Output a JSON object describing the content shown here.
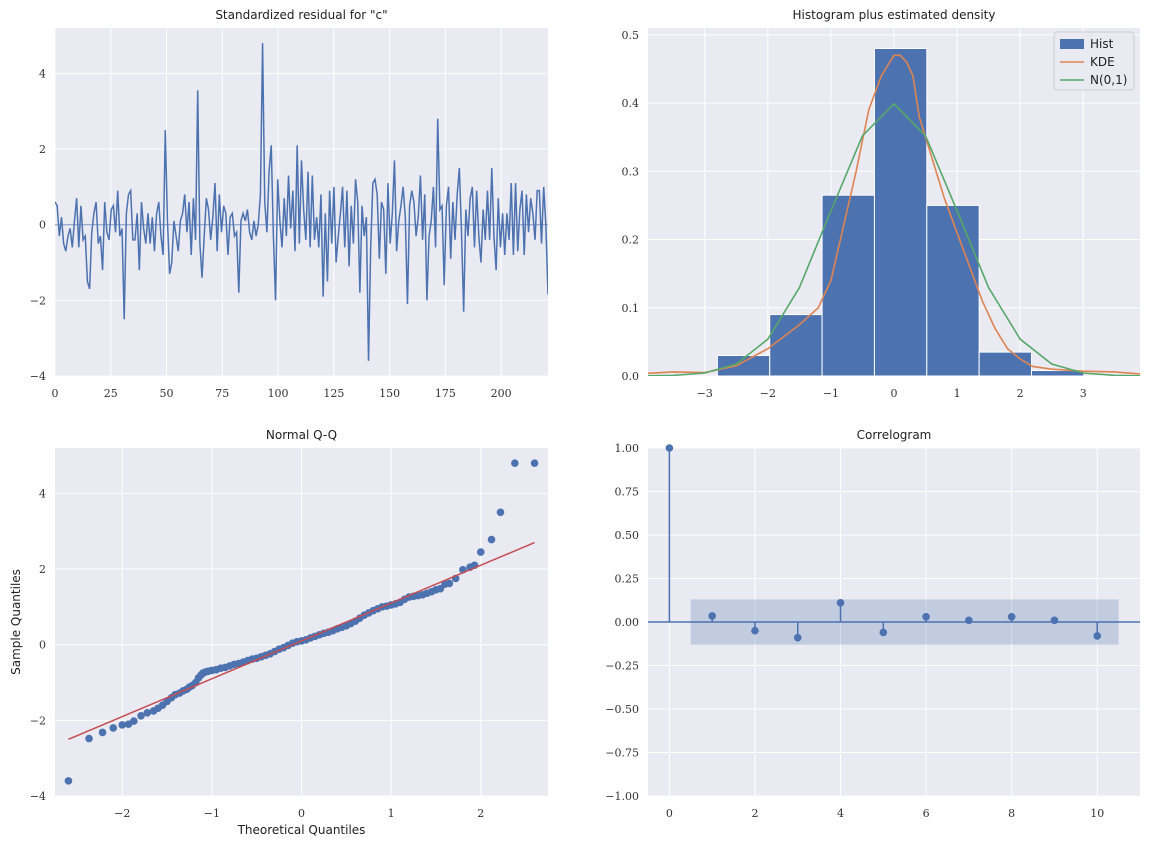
{
  "colors": {
    "background": "#EAEAF2",
    "grid": "#FFFFFF",
    "blue": "#4C72B0",
    "orange": "#DD8452",
    "green": "#55A868",
    "red": "#C44E52"
  },
  "chart_data": [
    {
      "id": "residual",
      "type": "line",
      "title": "Standardized residual for \"c\"",
      "xlabel": "",
      "ylabel": "",
      "xlim": [
        0,
        221
      ],
      "ylim": [
        -4,
        5.2
      ],
      "xticks": [
        0,
        25,
        50,
        75,
        100,
        125,
        150,
        175,
        200
      ],
      "yticks": [
        -4,
        -2,
        0,
        2,
        4
      ],
      "grid": true,
      "reference_line": 0,
      "series": [
        {
          "values": [
            0.6,
            0.5,
            -0.3,
            0.2,
            -0.5,
            -0.7,
            -0.3,
            -0.1,
            -0.6,
            0.1,
            0.7,
            -0.6,
            0.5,
            -0.4,
            -0.3,
            -1.5,
            -1.7,
            -0.2,
            0.3,
            0.6,
            -0.5,
            -0.3,
            -1.2,
            0.6,
            -0.2,
            -0.4,
            0.4,
            0.5,
            -0.2,
            0.9,
            -0.3,
            -0.1,
            -2.5,
            0.3,
            0.8,
            0.9,
            -0.4,
            -0.4,
            0.3,
            -1.2,
            0.6,
            -0.1,
            -0.5,
            0.3,
            -0.5,
            0.2,
            -0.7,
            0.3,
            0.6,
            -0.3,
            -0.8,
            2.5,
            0.1,
            -1.3,
            -1.0,
            0.1,
            -0.3,
            -0.7,
            0.1,
            0.3,
            0.8,
            -0.2,
            0.6,
            -0.8,
            0.7,
            -0.4,
            3.55,
            -0.5,
            -1.4,
            -0.3,
            0.7,
            0.4,
            -0.4,
            0.2,
            1.1,
            -0.7,
            0.8,
            -0.2,
            0.5,
            0.3,
            -0.8,
            0.2,
            0.3,
            -0.3,
            -0.2,
            -1.8,
            0.1,
            0.3,
            0.1,
            0.4,
            -0.2,
            -0.4,
            0.1,
            -0.3,
            0.0,
            0.8,
            4.8,
            0.6,
            -0.2,
            1.4,
            2.1,
            -0.3,
            -2.0,
            1.2,
            0.1,
            -0.6,
            0.7,
            -0.3,
            1.3,
            -0.1,
            0.9,
            -0.7,
            2.1,
            -0.5,
            1.7,
            0.4,
            -0.4,
            1.4,
            -0.6,
            1.3,
            -0.4,
            0.2,
            -0.6,
            0.8,
            -1.9,
            0.3,
            -1.5,
            0.9,
            -0.5,
            1.0,
            -1.0,
            -0.3,
            0.3,
            1.0,
            -0.6,
            0.9,
            -1.1,
            0.5,
            -0.5,
            1.2,
            0.6,
            -1.8,
            0.5,
            -0.3,
            0.2,
            -3.6,
            -0.6,
            1.1,
            1.2,
            0.8,
            -0.9,
            0.6,
            0.4,
            -1.3,
            1.1,
            -0.5,
            0.3,
            1.7,
            -0.7,
            0.1,
            0.5,
            1.0,
            0.2,
            -2.1,
            0.5,
            0.9,
            0.6,
            -0.3,
            0.2,
            1.3,
            -0.4,
            0.8,
            -2.0,
            -0.3,
            0.1,
            1.0,
            -0.6,
            2.8,
            0.4,
            0.5,
            -1.6,
            0.5,
            1.0,
            -0.9,
            0.6,
            -0.4,
            0.8,
            1.5,
            -0.2,
            -2.3,
            0.4,
            -0.3,
            0.7,
            1.0,
            -0.6,
            0.9,
            -0.3,
            -1.0,
            0.4,
            -0.4,
            0.9,
            -0.4,
            1.5,
            -0.3,
            -1.2,
            0.7,
            -0.6,
            0.3,
            -0.8,
            0.3,
            -0.4,
            1.1,
            -0.8,
            1.1,
            -0.7,
            0.4,
            0.9,
            -0.8,
            0.8,
            -0.2,
            0.7,
            0.3,
            -0.4,
            0.9,
            0.9,
            -0.5,
            1.0,
            0.0,
            -1.85
          ]
        }
      ]
    },
    {
      "id": "histogram",
      "type": "bar",
      "title": "Histogram plus estimated density",
      "xlabel": "",
      "ylabel": "",
      "xlim": [
        -3.9,
        3.9
      ],
      "ylim": [
        0,
        0.51
      ],
      "xticks": [
        -3,
        -2,
        -1,
        0,
        1,
        2,
        3
      ],
      "yticks": [
        0.0,
        0.1,
        0.2,
        0.3,
        0.4,
        0.5
      ],
      "ytick_labels": [
        "0.0",
        "0.1",
        "0.2",
        "0.3",
        "0.4",
        "0.5"
      ],
      "grid": true,
      "legend_position": "top-right",
      "bins": [
        {
          "start": -2.8,
          "end": -1.97,
          "value": 0.03
        },
        {
          "start": -1.97,
          "end": -1.14,
          "value": 0.09
        },
        {
          "start": -1.14,
          "end": -0.31,
          "value": 0.265
        },
        {
          "start": -0.31,
          "end": 0.52,
          "value": 0.48
        },
        {
          "start": 0.52,
          "end": 1.35,
          "value": 0.25
        },
        {
          "start": 1.35,
          "end": 2.18,
          "value": 0.035
        },
        {
          "start": 2.18,
          "end": 3.01,
          "value": 0.008
        }
      ],
      "series": [
        {
          "name": "Hist"
        },
        {
          "name": "KDE",
          "x": [
            -3.9,
            -3.5,
            -3.0,
            -2.5,
            -2.0,
            -1.5,
            -1.2,
            -1.0,
            -0.8,
            -0.6,
            -0.4,
            -0.2,
            0.0,
            0.1,
            0.2,
            0.3,
            0.4,
            0.6,
            0.8,
            1.0,
            1.2,
            1.4,
            1.6,
            1.8,
            2.0,
            2.2,
            2.5,
            3.0,
            3.5,
            3.9
          ],
          "values": [
            0.004,
            0.006,
            0.005,
            0.015,
            0.04,
            0.075,
            0.1,
            0.14,
            0.22,
            0.3,
            0.39,
            0.44,
            0.47,
            0.47,
            0.46,
            0.44,
            0.38,
            0.32,
            0.26,
            0.21,
            0.16,
            0.11,
            0.07,
            0.04,
            0.025,
            0.014,
            0.01,
            0.007,
            0.006,
            0.003
          ]
        },
        {
          "name": "N(0,1)",
          "x": [
            -3.9,
            -3.5,
            -3.0,
            -2.5,
            -2.0,
            -1.5,
            -1.0,
            -0.5,
            0.0,
            0.5,
            1.0,
            1.5,
            2.0,
            2.5,
            3.0,
            3.5,
            3.9
          ],
          "values": [
            0.0002,
            0.0009,
            0.0044,
            0.0175,
            0.054,
            0.1295,
            0.242,
            0.352,
            0.3989,
            0.352,
            0.242,
            0.1295,
            0.054,
            0.0175,
            0.0044,
            0.0009,
            0.0002
          ]
        }
      ]
    },
    {
      "id": "qq",
      "type": "scatter",
      "title": "Normal Q-Q",
      "xlabel": "Theoretical Quantiles",
      "ylabel": "Sample Quantiles",
      "xlim": [
        -2.75,
        2.75
      ],
      "ylim": [
        -4,
        5.2
      ],
      "xticks": [
        -2,
        -1,
        0,
        1,
        2
      ],
      "yticks": [
        -4,
        -2,
        0,
        2,
        4
      ],
      "grid": true,
      "reference_line": {
        "x": [
          -2.6,
          2.6
        ],
        "y": [
          -2.5,
          2.7
        ]
      },
      "series": [
        {
          "x": [
            -2.6,
            -2.37,
            -2.22,
            -2.1,
            -2.0,
            -1.93,
            -1.87,
            -1.79,
            -1.72,
            -1.65,
            -1.6,
            -1.55,
            -1.5,
            -1.45,
            -1.41,
            -1.36,
            -1.32,
            -1.28,
            -1.25,
            -1.22,
            -1.18,
            -1.15,
            -1.12,
            -1.1,
            -1.07,
            -1.04,
            -1.0,
            -0.95,
            -0.9,
            -0.85,
            -0.8,
            -0.75,
            -0.7,
            -0.65,
            -0.6,
            -0.55,
            -0.5,
            -0.45,
            -0.4,
            -0.35,
            -0.3,
            -0.25,
            -0.2,
            -0.15,
            -0.1,
            -0.05,
            0.0,
            0.05,
            0.1,
            0.15,
            0.2,
            0.25,
            0.3,
            0.35,
            0.4,
            0.45,
            0.5,
            0.55,
            0.6,
            0.65,
            0.7,
            0.75,
            0.8,
            0.85,
            0.9,
            0.95,
            1.0,
            1.05,
            1.1,
            1.15,
            1.2,
            1.25,
            1.3,
            1.35,
            1.4,
            1.45,
            1.5,
            1.55,
            1.6,
            1.65,
            1.72,
            1.8,
            1.88,
            1.93,
            2.0,
            2.12,
            2.22,
            2.38,
            2.6
          ],
          "values": [
            -3.6,
            -2.48,
            -2.32,
            -2.2,
            -2.12,
            -2.1,
            -2.02,
            -1.88,
            -1.8,
            -1.75,
            -1.68,
            -1.6,
            -1.5,
            -1.4,
            -1.32,
            -1.28,
            -1.22,
            -1.18,
            -1.12,
            -1.08,
            -1.0,
            -0.88,
            -0.8,
            -0.75,
            -0.72,
            -0.7,
            -0.68,
            -0.66,
            -0.62,
            -0.6,
            -0.56,
            -0.52,
            -0.5,
            -0.46,
            -0.42,
            -0.38,
            -0.36,
            -0.32,
            -0.28,
            -0.24,
            -0.18,
            -0.12,
            -0.08,
            -0.02,
            0.04,
            0.08,
            0.1,
            0.13,
            0.18,
            0.22,
            0.26,
            0.3,
            0.33,
            0.37,
            0.42,
            0.46,
            0.5,
            0.56,
            0.62,
            0.7,
            0.78,
            0.84,
            0.9,
            0.95,
            1.0,
            1.02,
            1.05,
            1.08,
            1.12,
            1.2,
            1.26,
            1.28,
            1.3,
            1.32,
            1.36,
            1.4,
            1.45,
            1.48,
            1.6,
            1.62,
            1.75,
            1.98,
            2.05,
            2.1,
            2.45,
            2.78,
            3.5,
            4.8,
            4.8
          ]
        }
      ]
    },
    {
      "id": "correlogram",
      "type": "scatter",
      "title": "Correlogram",
      "xlabel": "",
      "ylabel": "",
      "xlim": [
        -0.5,
        11
      ],
      "ylim": [
        -1.0,
        1.0
      ],
      "xticks": [
        0,
        2,
        4,
        6,
        8,
        10
      ],
      "yticks": [
        -1.0,
        -0.75,
        -0.5,
        -0.25,
        0.0,
        0.25,
        0.5,
        0.75,
        1.0
      ],
      "ytick_labels": [
        "−1.00",
        "−0.75",
        "−0.50",
        "−0.25",
        "0.00",
        "0.25",
        "0.50",
        "0.75",
        "1.00"
      ],
      "grid": true,
      "confidence_band": {
        "x_start": 0.5,
        "x_end": 10.5,
        "lower": -0.13,
        "upper": 0.13
      },
      "series": [
        {
          "x": [
            0,
            1,
            2,
            3,
            4,
            5,
            6,
            7,
            8,
            9,
            10
          ],
          "values": [
            1.0,
            0.035,
            -0.05,
            -0.09,
            0.11,
            -0.06,
            0.03,
            0.01,
            0.03,
            0.01,
            -0.08
          ]
        }
      ]
    }
  ]
}
